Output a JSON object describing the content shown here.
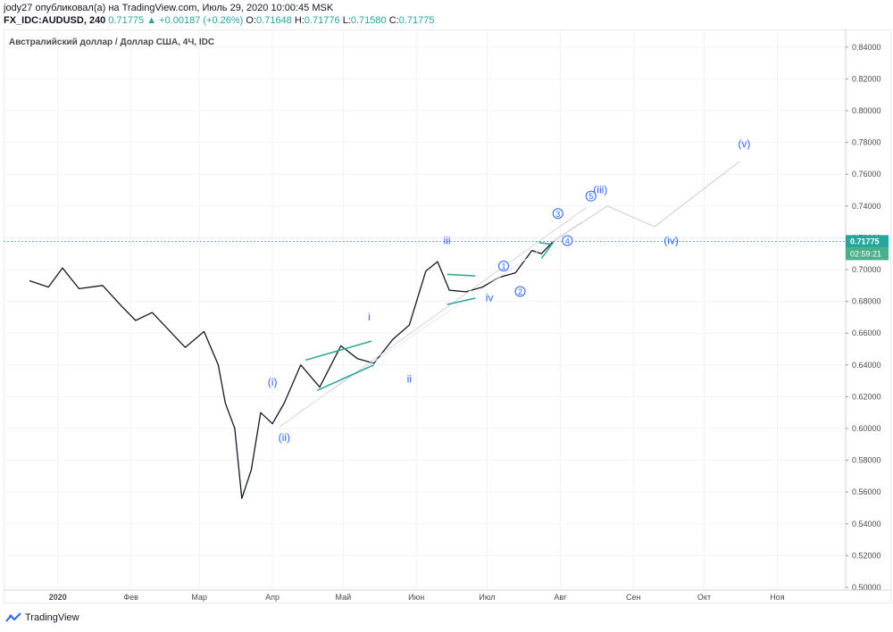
{
  "header": {
    "publisher_line": "jody27 опубликовал(а) на TradingView.com, Июль 29, 2020 10:00:45 MSK",
    "symbol": "FX_IDC:AUDUSD, 240",
    "last": "0.71775",
    "change": "▲ +0.00187 (+0.26%)",
    "o_label": "O:",
    "o": "0.71648",
    "h_label": "H:",
    "h": "0.71776",
    "l_label": "L:",
    "l": "0.71580",
    "c_label": "C:",
    "c": "0.71775"
  },
  "footer": {
    "brand": "TradingView",
    "logo_icon": "tradingview-logo-icon"
  },
  "colors": {
    "up": "#26a69a",
    "candle": "#131722",
    "wave": "#2962ff",
    "trend": "#26a69a",
    "price_tag": "#26a69a",
    "timer_tag": "#4caf8c"
  },
  "chart_data": {
    "type": "line",
    "title": "Австралийский доллар / Доллар США, 4Ч, IDC",
    "ylim": [
      0.5,
      0.85
    ],
    "y_ticks": [
      "0.50000",
      "0.52000",
      "0.54000",
      "0.56000",
      "0.58000",
      "0.60000",
      "0.62000",
      "0.64000",
      "0.66000",
      "0.68000",
      "0.70000",
      "0.72000",
      "0.74000",
      "0.76000",
      "0.78000",
      "0.80000",
      "0.82000",
      "0.84000"
    ],
    "x_ticks": [
      "2020",
      "Фев",
      "Мар",
      "Апр",
      "Май",
      "Июн",
      "Июл",
      "Авг",
      "Сен",
      "Окт",
      "Ноя"
    ],
    "current_price": "0.71775",
    "countdown": "02:59:21",
    "series": [
      {
        "x": [
          "2019-12-20",
          "2019-12-28",
          "2020-01-03",
          "2020-01-10",
          "2020-01-20",
          "2020-01-28",
          "2020-02-03",
          "2020-02-10",
          "2020-02-17",
          "2020-02-24",
          "2020-03-03",
          "2020-03-09",
          "2020-03-12",
          "2020-03-16",
          "2020-03-19",
          "2020-03-23",
          "2020-03-27",
          "2020-04-01",
          "2020-04-06",
          "2020-04-13",
          "2020-04-21",
          "2020-04-30",
          "2020-05-07",
          "2020-05-14",
          "2020-05-22",
          "2020-05-29",
          "2020-06-05",
          "2020-06-10",
          "2020-06-15",
          "2020-06-22",
          "2020-06-29",
          "2020-07-06",
          "2020-07-13",
          "2020-07-20",
          "2020-07-24",
          "2020-07-29"
        ],
        "values": [
          0.693,
          0.689,
          0.701,
          0.688,
          0.69,
          0.677,
          0.668,
          0.673,
          0.662,
          0.651,
          0.661,
          0.64,
          0.616,
          0.6,
          0.556,
          0.574,
          0.61,
          0.603,
          0.616,
          0.64,
          0.626,
          0.652,
          0.644,
          0.641,
          0.656,
          0.665,
          0.699,
          0.705,
          0.687,
          0.686,
          0.689,
          0.695,
          0.698,
          0.712,
          0.71,
          0.71775
        ]
      }
    ],
    "projection": {
      "x": [
        "2020-07-29",
        "2020-08-21",
        "2020-09-10",
        "2020-10-16"
      ],
      "values": [
        0.71775,
        0.74,
        0.727,
        0.768
      ]
    },
    "wave_labels": [
      {
        "text": "(i)",
        "x": "2020-04-01",
        "y": 0.627
      },
      {
        "text": "(ii)",
        "x": "2020-04-06",
        "y": 0.592
      },
      {
        "text": "i",
        "x": "2020-05-12",
        "y": 0.668
      },
      {
        "text": "ii",
        "x": "2020-05-29",
        "y": 0.629
      },
      {
        "text": "iii",
        "x": "2020-06-14",
        "y": 0.716
      },
      {
        "text": "iv",
        "x": "2020-07-02",
        "y": 0.68
      },
      {
        "text": "(iii)",
        "x": "2020-08-18",
        "y": 0.748
      },
      {
        "text": "(iv)",
        "x": "2020-09-17",
        "y": 0.716
      },
      {
        "text": "(v)",
        "x": "2020-10-18",
        "y": 0.777
      }
    ],
    "circled_labels": [
      {
        "text": "1",
        "x": "2020-07-08",
        "y": 0.7
      },
      {
        "text": "2",
        "x": "2020-07-15",
        "y": 0.684
      },
      {
        "text": "3",
        "x": "2020-07-31",
        "y": 0.733
      },
      {
        "text": "4",
        "x": "2020-08-04",
        "y": 0.716
      },
      {
        "text": "5",
        "x": "2020-08-14",
        "y": 0.744
      }
    ]
  }
}
